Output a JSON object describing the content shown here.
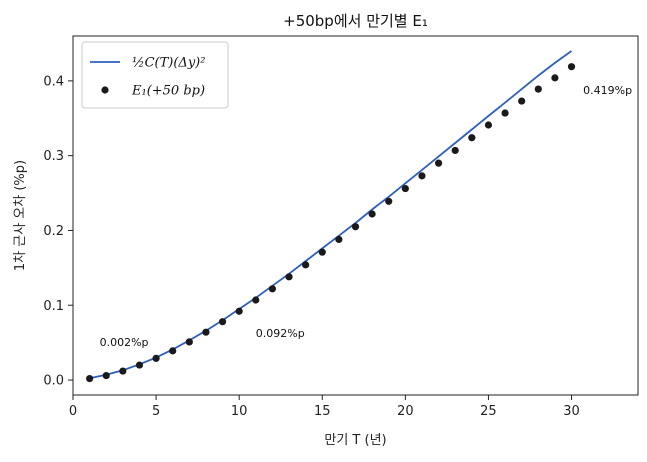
{
  "chart_data": {
    "type": "line",
    "title": "+50bp에서 만기별 E₁",
    "xlabel": "만기 T (년)",
    "ylabel": "1차 근사 오차 (%p)",
    "xlim": [
      0,
      34
    ],
    "ylim": [
      -0.02,
      0.46
    ],
    "xticks": [
      0,
      5,
      10,
      15,
      20,
      25,
      30
    ],
    "yticks": [
      0.0,
      0.1,
      0.2,
      0.3,
      0.4
    ],
    "ytick_labels": [
      "0.0",
      "0.1",
      "0.2",
      "0.3",
      "0.4"
    ],
    "grid": false,
    "legend_position": "top-left",
    "series": [
      {
        "name": "½C(T)(Δy)²",
        "kind": "line",
        "color": "#2c5fbf",
        "x": [
          1,
          2,
          3,
          4,
          5,
          6,
          7,
          8,
          9,
          10,
          11,
          12,
          13,
          14,
          15,
          16,
          17,
          18,
          19,
          20,
          21,
          22,
          23,
          24,
          25,
          26,
          27,
          28,
          29,
          30
        ],
        "y": [
          0.0025,
          0.007,
          0.013,
          0.021,
          0.03,
          0.041,
          0.053,
          0.066,
          0.08,
          0.095,
          0.11,
          0.126,
          0.142,
          0.159,
          0.176,
          0.193,
          0.21,
          0.228,
          0.245,
          0.263,
          0.281,
          0.299,
          0.317,
          0.335,
          0.353,
          0.371,
          0.389,
          0.407,
          0.424,
          0.44
        ]
      },
      {
        "name": "E₁(+50 bp)",
        "kind": "scatter",
        "color": "#1a1a1a",
        "x": [
          1,
          2,
          3,
          4,
          5,
          6,
          7,
          8,
          9,
          10,
          11,
          12,
          13,
          14,
          15,
          16,
          17,
          18,
          19,
          20,
          21,
          22,
          23,
          24,
          25,
          26,
          27,
          28,
          29,
          30
        ],
        "y": [
          0.002,
          0.006,
          0.012,
          0.02,
          0.029,
          0.039,
          0.051,
          0.064,
          0.078,
          0.092,
          0.107,
          0.122,
          0.138,
          0.154,
          0.171,
          0.188,
          0.205,
          0.222,
          0.239,
          0.256,
          0.273,
          0.29,
          0.307,
          0.324,
          0.341,
          0.357,
          0.373,
          0.389,
          0.404,
          0.419
        ]
      }
    ],
    "annotations": [
      {
        "text": "0.002%p",
        "x": 1.6,
        "y": 0.051
      },
      {
        "text": "0.092%p",
        "x": 11.0,
        "y": 0.063
      },
      {
        "text": "0.419%p",
        "x": 30.7,
        "y": 0.388
      }
    ]
  }
}
